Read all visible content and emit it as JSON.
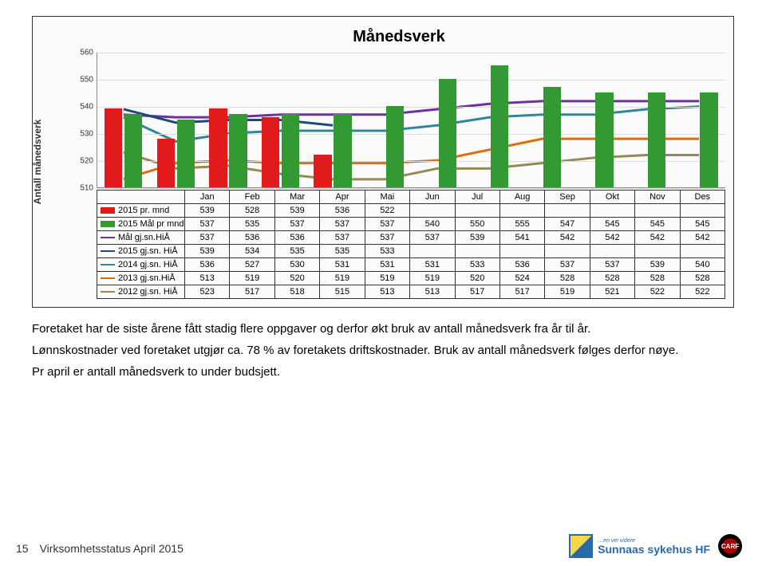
{
  "chart": {
    "title": "Månedsverk",
    "yaxis_title": "Antall månedsverk",
    "ylim": [
      510,
      560
    ],
    "yticks": [
      510,
      520,
      530,
      540,
      550,
      560
    ],
    "colors": {
      "bar_2015pr": "#e11b1b",
      "bar_2015mal": "#339933",
      "line_malgjsn": "#7030a0",
      "line_2015gjsn": "#1f497d",
      "line_2014gjsn": "#31859c",
      "line_2013gjsn": "#e26b0a",
      "line_2012gjsn": "#948a54",
      "grid": "#dddddd",
      "border": "#333333"
    },
    "categories": [
      "Jan",
      "Feb",
      "Mar",
      "Apr",
      "Mai",
      "Jun",
      "Jul",
      "Aug",
      "Sep",
      "Okt",
      "Nov",
      "Des"
    ],
    "series": [
      {
        "key": "2015pr",
        "label": "2015 pr. mnd",
        "type": "bar",
        "slot": "a",
        "color": "#e11b1b",
        "values": [
          539,
          528,
          539,
          536,
          522,
          null,
          null,
          null,
          null,
          null,
          null,
          null
        ]
      },
      {
        "key": "2015mal",
        "label": "2015 Mål pr mnd",
        "type": "bar",
        "slot": "b",
        "color": "#339933",
        "values": [
          537,
          535,
          537,
          537,
          537,
          540,
          550,
          555,
          547,
          545,
          545,
          545
        ]
      },
      {
        "key": "malgjsn",
        "label": "Mål gj.sn.HiÅ",
        "type": "line",
        "color": "#7030a0",
        "values": [
          537,
          536,
          536,
          537,
          537,
          537,
          539,
          541,
          542,
          542,
          542,
          542
        ]
      },
      {
        "key": "2015gjsn",
        "label": "2015 gj.sn. HiÅ",
        "type": "line",
        "color": "#1f497d",
        "values": [
          539,
          534,
          535,
          535,
          533,
          null,
          null,
          null,
          null,
          null,
          null,
          null
        ]
      },
      {
        "key": "2014gjsn",
        "label": "2014 gj.sn. HiÅ",
        "type": "line",
        "color": "#31859c",
        "values": [
          536,
          527,
          530,
          531,
          531,
          531,
          533,
          536,
          537,
          537,
          539,
          540
        ]
      },
      {
        "key": "2013gjsn",
        "label": "2013 gj.sn.HiÅ",
        "type": "line",
        "color": "#e26b0a",
        "values": [
          513,
          519,
          520,
          519,
          519,
          519,
          520,
          524,
          528,
          528,
          528,
          528
        ]
      },
      {
        "key": "2012gjsn",
        "label": "2012 gj.sn. HiÅ",
        "type": "line",
        "color": "#948a54",
        "values": [
          523,
          517,
          518,
          515,
          513,
          513,
          517,
          517,
          519,
          521,
          522,
          522
        ]
      }
    ]
  },
  "body": {
    "p1": "Foretaket har de siste årene fått stadig flere oppgaver og derfor økt bruk av antall månedsverk fra år til år.",
    "p2": "Lønnskostnader ved foretaket utgjør ca. 78 % av foretakets driftskostnader. Bruk av antall månedsverk følges derfor nøye.",
    "p3": "Pr april er antall månedsverk to under budsjett."
  },
  "footer": {
    "page": "15",
    "doc": "Virksomhetsstatus April 2015",
    "logo_small": "…en vei videre",
    "logo_main": "Sunnaas sykehus HF",
    "badge": "CARF"
  }
}
